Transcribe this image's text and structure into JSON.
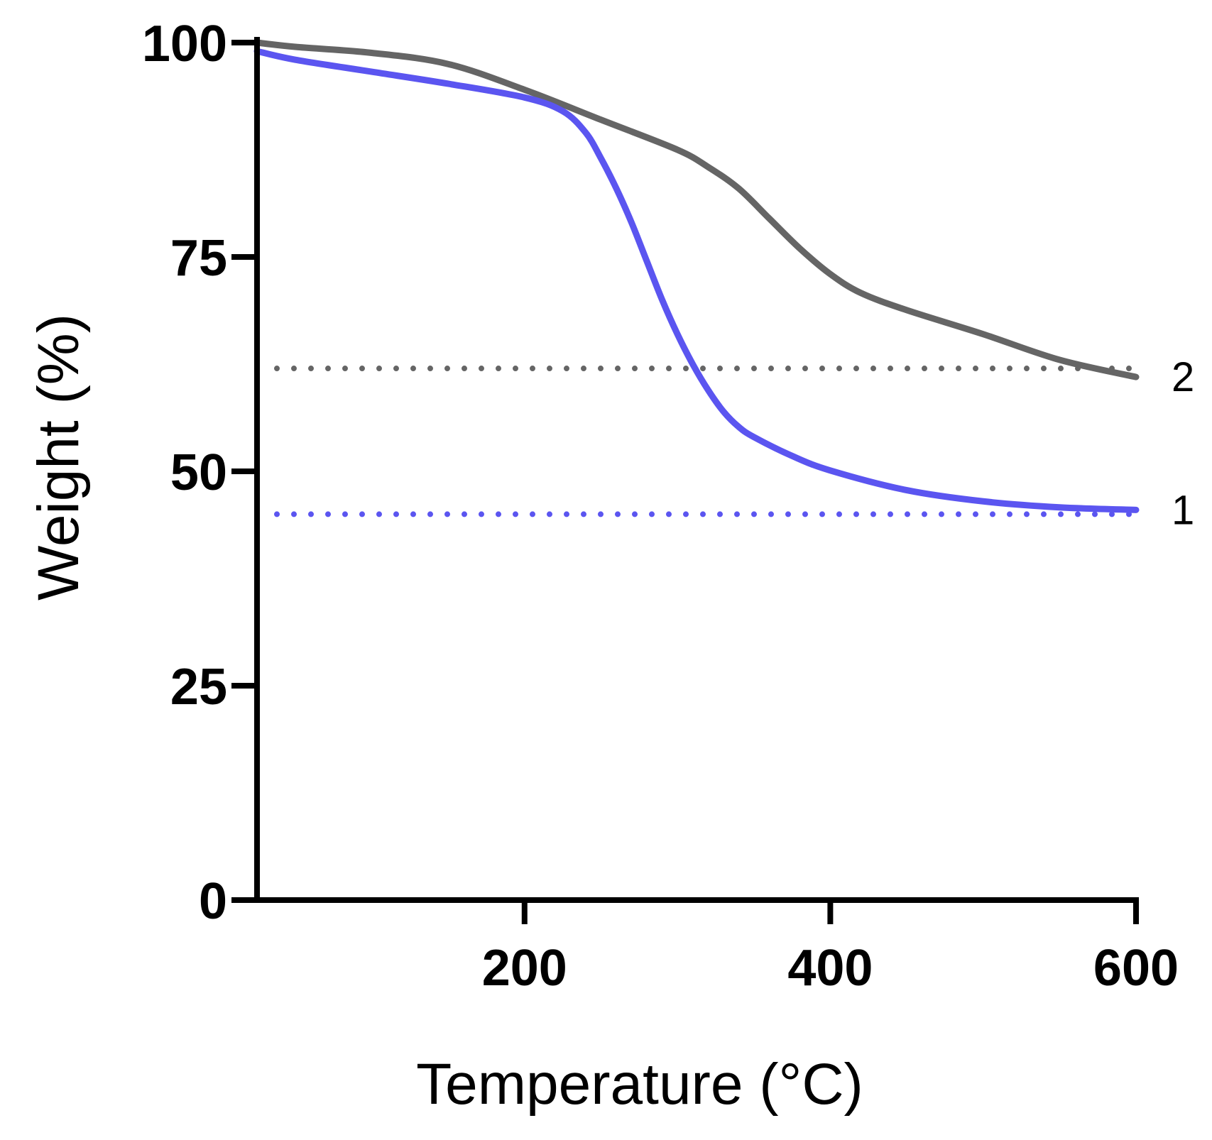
{
  "chart_data": {
    "type": "line",
    "title": "",
    "xlabel": "Temperature (°C)",
    "ylabel": "Weight (%)",
    "xlim": [
      25,
      600
    ],
    "ylim": [
      0,
      100
    ],
    "xticks": [
      200,
      400,
      600
    ],
    "xtick_labels": [
      "200",
      "400",
      "600"
    ],
    "yticks": [
      0,
      25,
      50,
      75,
      100
    ],
    "ytick_labels": [
      "0",
      "25",
      "50",
      "75",
      "100"
    ],
    "grid": false,
    "series": [
      {
        "name": "1",
        "label": "1",
        "color": "#5b55f0",
        "x": [
          25,
          50,
          100,
          150,
          200,
          225,
          240,
          250,
          260,
          270,
          280,
          290,
          300,
          310,
          320,
          330,
          340,
          350,
          375,
          400,
          450,
          500,
          550,
          600
        ],
        "y": [
          99,
          98,
          96.6,
          95.2,
          93.6,
          92,
          89.5,
          86.5,
          83,
          79,
          74.5,
          70,
          66,
          62.5,
          59.5,
          57,
          55.2,
          54,
          51.8,
          50.1,
          47.8,
          46.5,
          45.8,
          45.5
        ]
      },
      {
        "name": "2",
        "label": "2",
        "color": "#656565",
        "x": [
          25,
          50,
          100,
          150,
          200,
          250,
          300,
          320,
          340,
          360,
          380,
          400,
          420,
          450,
          500,
          550,
          600
        ],
        "y": [
          100,
          99.5,
          98.8,
          97.5,
          94.5,
          91,
          87.5,
          85.5,
          83,
          79.5,
          76,
          73,
          70.8,
          68.8,
          66,
          63,
          61
        ]
      }
    ],
    "reference_lines": [
      {
        "y": 45,
        "color": "#5b55f0",
        "style": "dotted"
      },
      {
        "y": 62,
        "color": "#656565",
        "style": "dotted"
      }
    ]
  }
}
